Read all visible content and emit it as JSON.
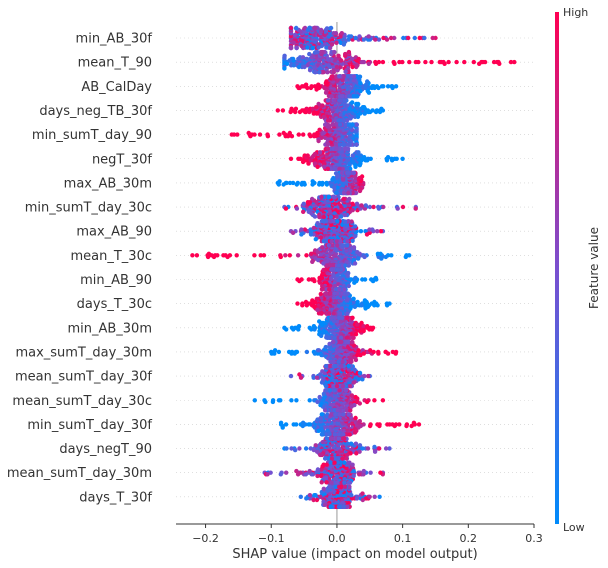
{
  "chart_data": {
    "type": "scatter",
    "subtype": "shap-beeswarm",
    "xlabel": "SHAP value (impact on model output)",
    "xlim": [
      -0.245,
      0.3
    ],
    "xticks": [
      -0.2,
      -0.1,
      0.0,
      0.1,
      0.2,
      0.3
    ],
    "xtick_labels": [
      "−0.2",
      "−0.1",
      "0.0",
      "0.1",
      "0.2",
      "0.3"
    ],
    "zero_line": true,
    "colorbar": {
      "title": "Feature value",
      "high_label": "High",
      "low_label": "Low",
      "low_color": "#008bfb",
      "high_color": "#ff0052"
    },
    "features": [
      {
        "name": "min_AB_30f",
        "min": -0.07,
        "max": 0.15,
        "peak": -0.03,
        "spread": 0.045,
        "trend": "mixed"
      },
      {
        "name": "mean_T_90",
        "min": -0.08,
        "max": 0.27,
        "peak": -0.02,
        "spread": 0.06,
        "trend": "high-right"
      },
      {
        "name": "AB_CalDay",
        "min": -0.06,
        "max": 0.09,
        "peak": 0.01,
        "spread": 0.035,
        "trend": "high-left"
      },
      {
        "name": "days_neg_TB_30f",
        "min": -0.09,
        "max": 0.07,
        "peak": 0.0,
        "spread": 0.035,
        "trend": "high-left"
      },
      {
        "name": "min_sumT_day_90",
        "min": -0.16,
        "max": 0.03,
        "peak": 0.005,
        "spread": 0.03,
        "trend": "high-left"
      },
      {
        "name": "negT_30f",
        "min": -0.07,
        "max": 0.1,
        "peak": 0.0,
        "spread": 0.035,
        "trend": "high-left"
      },
      {
        "name": "max_AB_30m",
        "min": -0.09,
        "max": 0.04,
        "peak": 0.015,
        "spread": 0.02,
        "trend": "high-right"
      },
      {
        "name": "min_sumT_day_30c",
        "min": -0.08,
        "max": 0.12,
        "peak": -0.01,
        "spread": 0.035,
        "trend": "mixed"
      },
      {
        "name": "max_AB_90",
        "min": -0.07,
        "max": 0.07,
        "peak": -0.005,
        "spread": 0.03,
        "trend": "mixed"
      },
      {
        "name": "mean_T_30c",
        "min": -0.22,
        "max": 0.11,
        "peak": 0.0,
        "spread": 0.035,
        "trend": "high-left"
      },
      {
        "name": "min_AB_90",
        "min": -0.06,
        "max": 0.06,
        "peak": 0.0,
        "spread": 0.02,
        "trend": "high-left"
      },
      {
        "name": "days_T_30c",
        "min": -0.06,
        "max": 0.08,
        "peak": 0.0,
        "spread": 0.03,
        "trend": "high-left"
      },
      {
        "name": "min_AB_30m",
        "min": -0.08,
        "max": 0.055,
        "peak": 0.005,
        "spread": 0.025,
        "trend": "high-right"
      },
      {
        "name": "max_sumT_day_30m",
        "min": -0.1,
        "max": 0.09,
        "peak": 0.005,
        "spread": 0.025,
        "trend": "high-right"
      },
      {
        "name": "mean_sumT_day_30f",
        "min": -0.07,
        "max": 0.05,
        "peak": 0.005,
        "spread": 0.025,
        "trend": "mixed"
      },
      {
        "name": "mean_sumT_day_30c",
        "min": -0.125,
        "max": 0.07,
        "peak": 0.0,
        "spread": 0.025,
        "trend": "high-right"
      },
      {
        "name": "min_sumT_day_30f",
        "min": -0.085,
        "max": 0.125,
        "peak": 0.0,
        "spread": 0.03,
        "trend": "high-right"
      },
      {
        "name": "days_negT_90",
        "min": -0.08,
        "max": 0.08,
        "peak": 0.0,
        "spread": 0.025,
        "trend": "mixed"
      },
      {
        "name": "mean_sumT_day_30m",
        "min": -0.11,
        "max": 0.07,
        "peak": 0.0,
        "spread": 0.025,
        "trend": "mixed"
      },
      {
        "name": "days_T_30f",
        "min": -0.055,
        "max": 0.065,
        "peak": 0.0,
        "spread": 0.02,
        "trend": "mixed"
      }
    ]
  }
}
